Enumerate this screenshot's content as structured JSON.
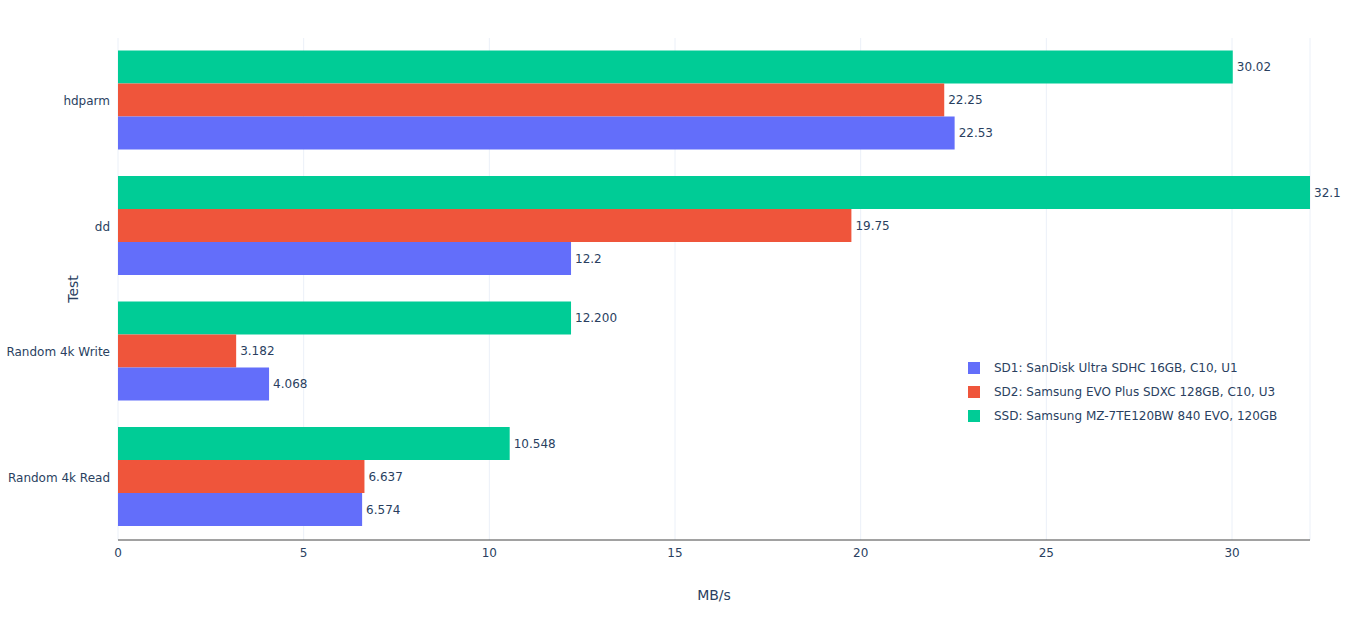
{
  "chart_data": {
    "type": "bar",
    "orientation": "horizontal",
    "categories": [
      "hdparm",
      "dd",
      "Random 4k Write",
      "Random 4k Read"
    ],
    "series": [
      {
        "name": "SD1: SanDisk Ultra SDHC 16GB, C10, U1",
        "color": "#636efa",
        "values": [
          22.53,
          12.2,
          4.068,
          6.574
        ]
      },
      {
        "name": "SD2: Samsung EVO Plus SDXC 128GB, C10, U3",
        "color": "#ef553b",
        "values": [
          22.25,
          19.75,
          3.182,
          6.637
        ]
      },
      {
        "name": "SSD: Samsung MZ-7TE120BW 840 EVO, 120GB",
        "color": "#00cc96",
        "values": [
          30.02,
          32.1,
          12.2,
          10.548
        ],
        "value_labels": [
          "30.02",
          "32.1",
          "12.200",
          "10.548"
        ]
      }
    ],
    "x_label": "MB/s",
    "y_label": "Test",
    "xlim": [
      0,
      32.1
    ],
    "xticks": [
      0,
      5,
      10,
      15,
      20,
      25,
      30
    ],
    "grid": true,
    "data_labels": true,
    "legend": "right"
  }
}
